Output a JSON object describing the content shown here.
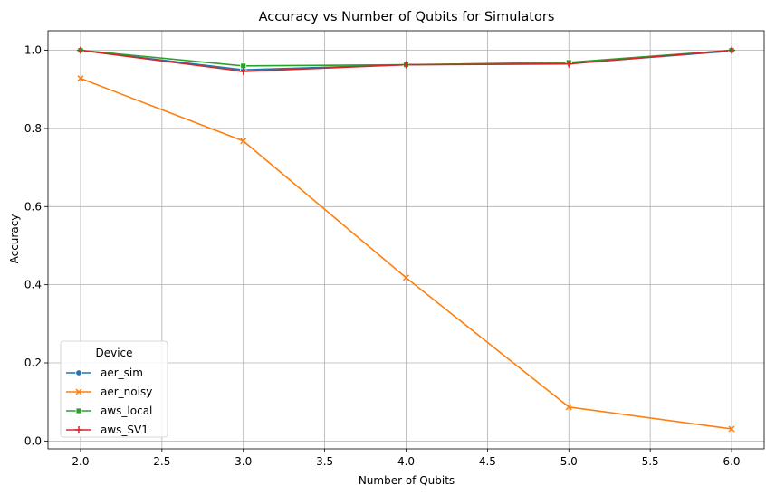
{
  "chart_data": {
    "type": "line",
    "title": "Accuracy vs Number of Qubits for Simulators",
    "xlabel": "Number of Qubits",
    "ylabel": "Accuracy",
    "xlim": [
      1.8,
      6.2
    ],
    "ylim": [
      -0.02,
      1.05
    ],
    "xticks": [
      2.0,
      2.5,
      3.0,
      3.5,
      4.0,
      4.5,
      5.0,
      5.5,
      6.0
    ],
    "xtick_labels": [
      "2.0",
      "2.5",
      "3.0",
      "3.5",
      "4.0",
      "4.5",
      "5.0",
      "5.5",
      "6.0"
    ],
    "yticks": [
      0.0,
      0.2,
      0.4,
      0.6,
      0.8,
      1.0
    ],
    "ytick_labels": [
      "0.0",
      "0.2",
      "0.4",
      "0.6",
      "0.8",
      "1.0"
    ],
    "grid": true,
    "legend": {
      "title": "Device",
      "placement": "lower-left"
    },
    "x": [
      2,
      3,
      4,
      5,
      6
    ],
    "series": [
      {
        "name": "aer_sim",
        "color": "#1f77b4",
        "marker": "circle",
        "values": [
          1.0,
          0.95,
          0.963,
          0.966,
          0.998
        ]
      },
      {
        "name": "aer_noisy",
        "color": "#ff7f0e",
        "marker": "x",
        "values": [
          0.928,
          0.768,
          0.418,
          0.087,
          0.031
        ]
      },
      {
        "name": "aws_local",
        "color": "#2ca02c",
        "marker": "square",
        "values": [
          1.0,
          0.96,
          0.963,
          0.969,
          1.0
        ]
      },
      {
        "name": "aws_SV1",
        "color": "#d62728",
        "marker": "plus",
        "values": [
          1.0,
          0.946,
          0.963,
          0.965,
          1.0
        ]
      }
    ]
  }
}
